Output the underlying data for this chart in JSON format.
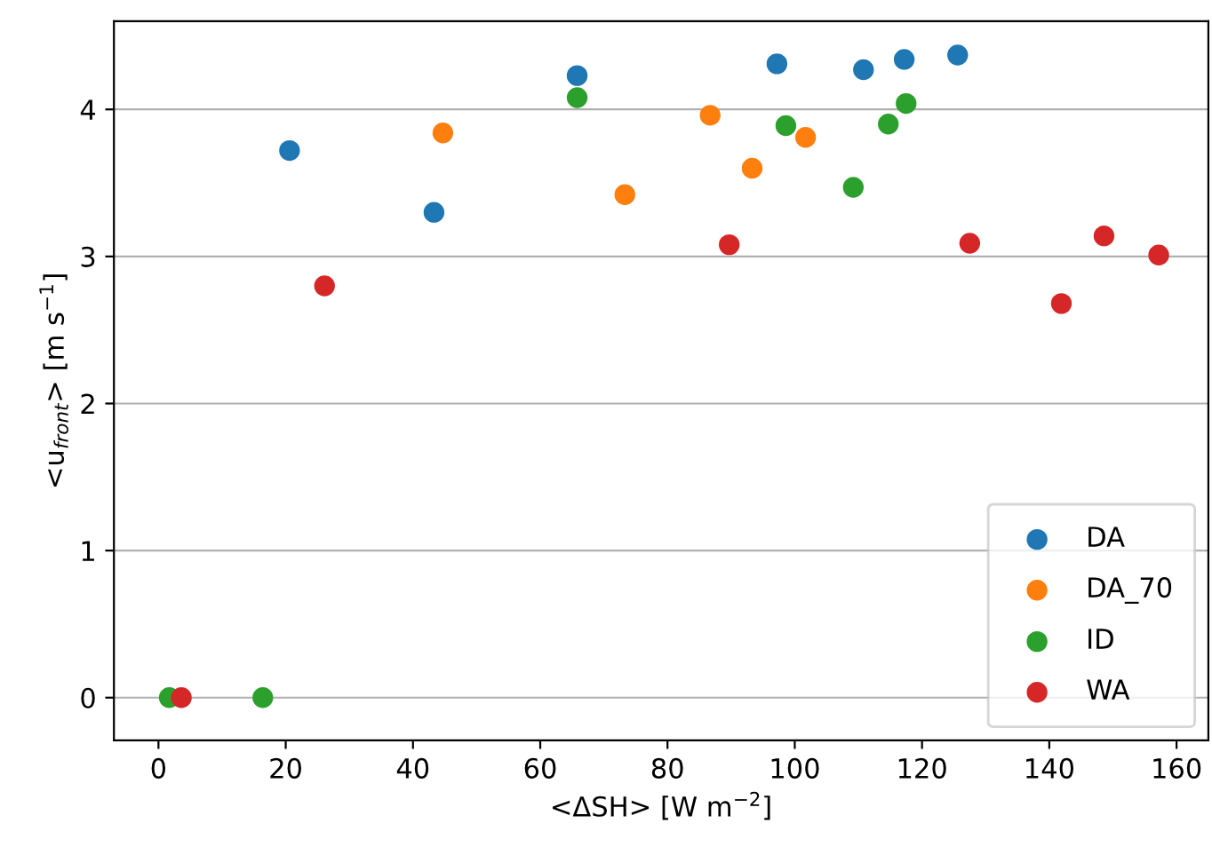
{
  "chart_data": {
    "type": "scatter",
    "xlabel": "<ΔSH> [W m$^{−2}$]",
    "ylabel": "<u$_{front}$> [m s$^{−1}$]",
    "xlim": [
      -7,
      165
    ],
    "xticks": [
      0,
      20,
      40,
      60,
      80,
      100,
      120,
      140,
      160
    ],
    "ylim": [
      -0.29,
      4.6
    ],
    "yticks": [
      0,
      1,
      2,
      3,
      4
    ],
    "grid": "y",
    "legend": "bottom right",
    "marker": "circle",
    "series": [
      {
        "name": "DA",
        "color": "#1f77b4",
        "x": [
          20.6,
          43.3,
          65.8,
          97.2,
          110.8,
          117.2,
          125.6
        ],
        "values": [
          3.72,
          3.3,
          4.23,
          4.31,
          4.27,
          4.34,
          4.37
        ]
      },
      {
        "name": "DA_70",
        "color": "#ff7f0e",
        "x": [
          44.7,
          73.3,
          86.7,
          93.3,
          101.7
        ],
        "values": [
          3.84,
          3.42,
          3.96,
          3.6,
          3.81
        ]
      },
      {
        "name": "ID",
        "color": "#2ca02c",
        "x": [
          1.7,
          16.4,
          65.8,
          98.6,
          109.2,
          114.7,
          117.5
        ],
        "values": [
          0,
          0,
          4.08,
          3.89,
          3.47,
          3.9,
          4.04
        ]
      },
      {
        "name": "WA",
        "color": "#d62728",
        "x": [
          3.6,
          26.1,
          89.7,
          127.5,
          141.9,
          148.6,
          157.2
        ],
        "values": [
          0,
          2.8,
          3.08,
          3.09,
          2.68,
          3.14,
          3.01
        ]
      }
    ]
  }
}
